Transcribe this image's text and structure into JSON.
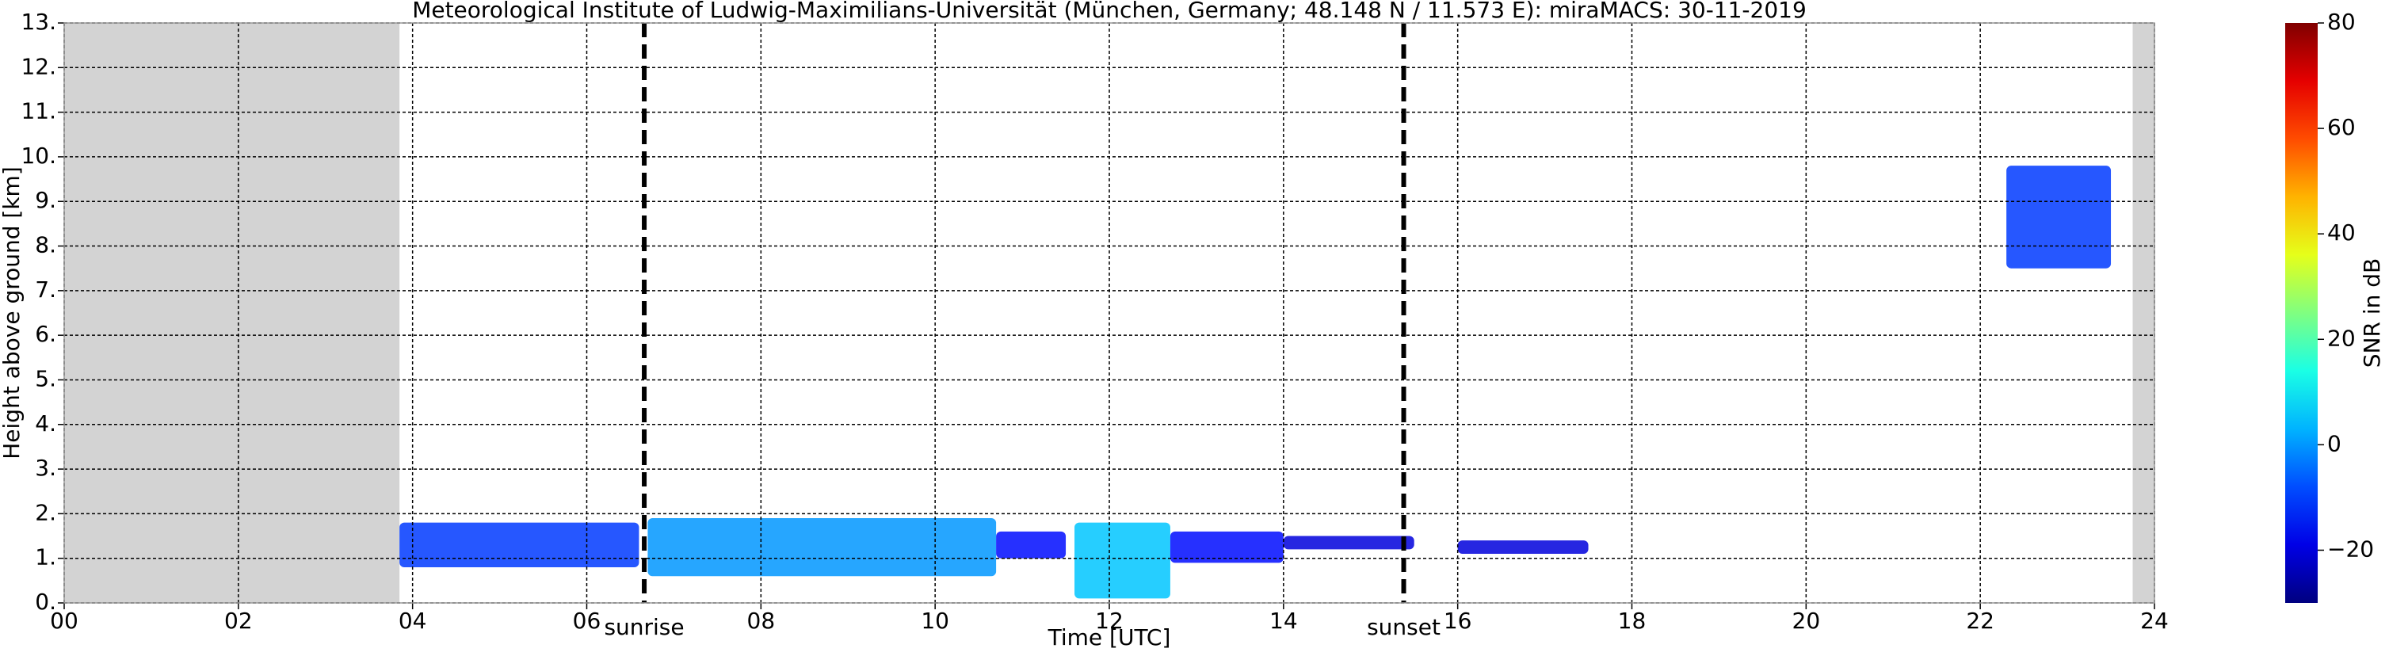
{
  "chart_data": {
    "type": "heatmap",
    "title": "Meteorological Institute of Ludwig-Maximilians-Universität (München, Germany; 48.148 N / 11.573 E):    miraMACS: 30-11-2019",
    "xlabel": "Time [UTC]",
    "ylabel": "Height above ground [km]",
    "xlim": [
      0,
      24
    ],
    "xticks": [
      {
        "value": 0,
        "label": "00"
      },
      {
        "value": 2,
        "label": "02"
      },
      {
        "value": 4,
        "label": "04"
      },
      {
        "value": 6,
        "label": "06"
      },
      {
        "value": 8,
        "label": "08"
      },
      10,
      12,
      14,
      16,
      18,
      20,
      22,
      24
    ],
    "ylim": [
      0,
      13
    ],
    "yticks": [
      {
        "value": 0,
        "label": "0."
      },
      {
        "value": 1,
        "label": "1."
      },
      {
        "value": 2,
        "label": "2."
      },
      {
        "value": 3,
        "label": "3."
      },
      {
        "value": 4,
        "label": "4."
      },
      {
        "value": 5,
        "label": "5."
      },
      {
        "value": 6,
        "label": "6."
      },
      {
        "value": 7,
        "label": "7."
      },
      {
        "value": 8,
        "label": "8."
      },
      {
        "value": 9,
        "label": "9."
      },
      {
        "value": 10,
        "label": "10."
      },
      {
        "value": 11,
        "label": "11."
      },
      {
        "value": 12,
        "label": "12."
      },
      {
        "value": 13,
        "label": "13."
      }
    ],
    "grid": true,
    "nodata": [
      [
        0,
        3.85
      ],
      [
        23.75,
        24
      ]
    ],
    "nodata_color": "#d3d3d3",
    "events": [
      {
        "name": "sunrise",
        "x": 6.66
      },
      {
        "name": "sunset",
        "x": 15.38
      }
    ],
    "patches": [
      {
        "x": [
          3.85,
          6.6
        ],
        "y": [
          0.8,
          1.8
        ],
        "snr": -10
      },
      {
        "x": [
          6.7,
          10.7
        ],
        "y": [
          0.6,
          1.9
        ],
        "snr": 0
      },
      {
        "x": [
          10.7,
          11.5
        ],
        "y": [
          1.0,
          1.6
        ],
        "snr": -15
      },
      {
        "x": [
          11.6,
          12.7
        ],
        "y": [
          0.1,
          1.8
        ],
        "snr": 5
      },
      {
        "x": [
          12.7,
          14.0
        ],
        "y": [
          0.9,
          1.6
        ],
        "snr": -15
      },
      {
        "x": [
          14.0,
          15.5
        ],
        "y": [
          1.2,
          1.5
        ],
        "snr": -20
      },
      {
        "x": [
          16.0,
          17.5
        ],
        "y": [
          1.1,
          1.4
        ],
        "snr": -20
      },
      {
        "x": [
          22.3,
          23.5
        ],
        "y": [
          7.5,
          9.8
        ],
        "snr": -10
      }
    ],
    "colorbar": {
      "label": "SNR in dB",
      "lim": [
        -30,
        80
      ],
      "colormap": "jet",
      "ticks": [
        {
          "value": -20,
          "label": "−20"
        },
        0,
        20,
        40,
        60,
        80
      ]
    }
  }
}
